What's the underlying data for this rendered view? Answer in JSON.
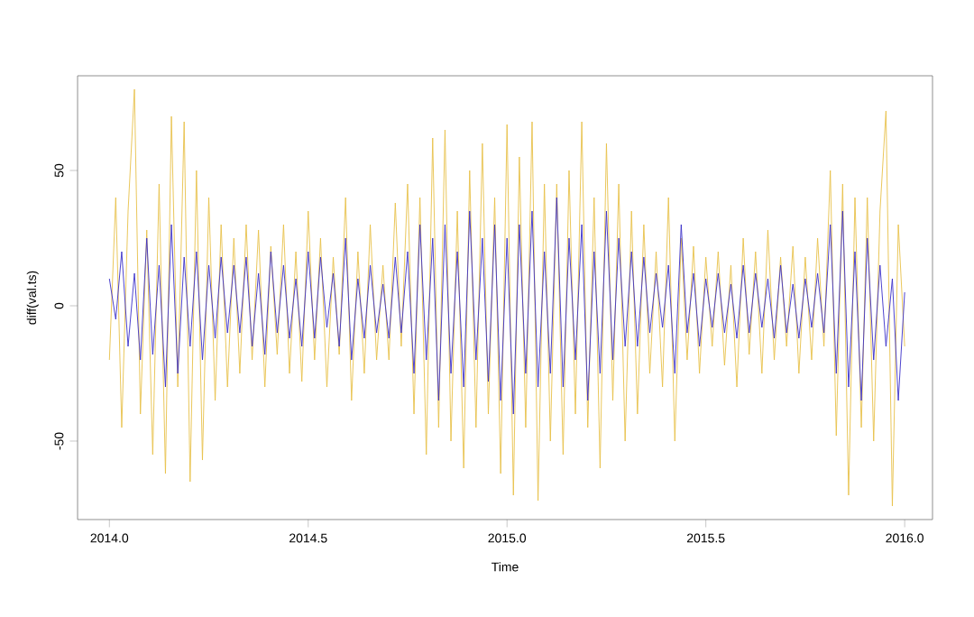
{
  "chart_data": {
    "type": "line",
    "xlabel": "Time",
    "ylabel": "diff(val.ts)",
    "xlim": [
      2013.92,
      2016.07
    ],
    "ylim": [
      -79,
      85
    ],
    "xticks": [
      {
        "value": 2014,
        "label": "2014.0"
      },
      {
        "value": 2014.5,
        "label": "2014.5"
      },
      {
        "value": 2015,
        "label": "2015.0"
      },
      {
        "value": 2015.5,
        "label": "2015.5"
      },
      {
        "value": 2016,
        "label": "2016.0"
      }
    ],
    "yticks": [
      -50,
      0,
      50
    ],
    "marker": "none",
    "line_style": "solid",
    "x": [
      2014.0,
      2014.016,
      2014.031,
      2014.047,
      2014.063,
      2014.078,
      2014.094,
      2014.109,
      2014.125,
      2014.141,
      2014.156,
      2014.172,
      2014.188,
      2014.203,
      2014.219,
      2014.234,
      2014.25,
      2014.266,
      2014.281,
      2014.297,
      2014.313,
      2014.328,
      2014.344,
      2014.359,
      2014.375,
      2014.391,
      2014.406,
      2014.422,
      2014.438,
      2014.453,
      2014.469,
      2014.484,
      2014.5,
      2014.516,
      2014.531,
      2014.547,
      2014.563,
      2014.578,
      2014.594,
      2014.609,
      2014.625,
      2014.641,
      2014.656,
      2014.672,
      2014.688,
      2014.703,
      2014.719,
      2014.734,
      2014.75,
      2014.766,
      2014.781,
      2014.797,
      2014.813,
      2014.828,
      2014.844,
      2014.859,
      2014.875,
      2014.891,
      2014.906,
      2014.922,
      2014.938,
      2014.953,
      2014.969,
      2014.984,
      2015.0,
      2015.016,
      2015.031,
      2015.047,
      2015.063,
      2015.078,
      2015.094,
      2015.109,
      2015.125,
      2015.141,
      2015.156,
      2015.172,
      2015.188,
      2015.203,
      2015.219,
      2015.234,
      2015.25,
      2015.266,
      2015.281,
      2015.297,
      2015.313,
      2015.328,
      2015.344,
      2015.359,
      2015.375,
      2015.391,
      2015.406,
      2015.422,
      2015.438,
      2015.453,
      2015.469,
      2015.484,
      2015.5,
      2015.516,
      2015.531,
      2015.547,
      2015.563,
      2015.578,
      2015.594,
      2015.609,
      2015.625,
      2015.641,
      2015.656,
      2015.672,
      2015.688,
      2015.703,
      2015.719,
      2015.734,
      2015.75,
      2015.766,
      2015.781,
      2015.797,
      2015.813,
      2015.828,
      2015.844,
      2015.859,
      2015.875,
      2015.891,
      2015.906,
      2015.922,
      2015.938,
      2015.953,
      2015.969,
      2015.984,
      2016.0
    ],
    "series": [
      {
        "color": "#e8c14a",
        "values": [
          -20,
          40,
          -45,
          35,
          80,
          -40,
          28,
          -55,
          45,
          -62,
          70,
          -30,
          68,
          -65,
          50,
          -57,
          40,
          -35,
          30,
          -30,
          25,
          -25,
          30,
          -20,
          28,
          -30,
          22,
          -18,
          30,
          -25,
          20,
          -28,
          35,
          -20,
          25,
          -30,
          18,
          -18,
          40,
          -35,
          20,
          -25,
          30,
          -20,
          15,
          -20,
          38,
          -15,
          45,
          -40,
          40,
          -55,
          62,
          -45,
          65,
          -50,
          35,
          -60,
          50,
          -45,
          60,
          -40,
          40,
          -62,
          67,
          -70,
          55,
          -45,
          68,
          -72,
          45,
          -50,
          45,
          -55,
          50,
          -40,
          68,
          -45,
          40,
          -60,
          60,
          -35,
          45,
          -50,
          35,
          -40,
          30,
          -25,
          20,
          -30,
          40,
          -50,
          25,
          -20,
          22,
          -25,
          18,
          -15,
          20,
          -22,
          15,
          -30,
          25,
          -18,
          20,
          -25,
          28,
          -20,
          18,
          -15,
          22,
          -25,
          18,
          -20,
          25,
          -15,
          50,
          -48,
          45,
          -70,
          40,
          -45,
          40,
          -50,
          35,
          72,
          -74,
          30,
          -15
        ]
      },
      {
        "color": "#3a2fc8",
        "values": [
          10,
          -5,
          20,
          -15,
          12,
          -20,
          25,
          -18,
          15,
          -30,
          30,
          -25,
          18,
          -15,
          20,
          -20,
          15,
          -12,
          18,
          -10,
          15,
          -10,
          18,
          -15,
          12,
          -18,
          20,
          -10,
          15,
          -12,
          10,
          -15,
          20,
          -12,
          18,
          -8,
          12,
          -15,
          25,
          -20,
          10,
          -12,
          15,
          -10,
          8,
          -12,
          18,
          -10,
          20,
          -25,
          30,
          -20,
          25,
          -35,
          30,
          -25,
          20,
          -30,
          35,
          -20,
          25,
          -28,
          30,
          -35,
          25,
          -40,
          30,
          -25,
          35,
          -30,
          20,
          -25,
          40,
          -30,
          25,
          -20,
          30,
          -35,
          20,
          -25,
          35,
          -20,
          25,
          -15,
          20,
          -15,
          18,
          -10,
          12,
          -8,
          15,
          -25,
          30,
          -10,
          12,
          -15,
          10,
          -8,
          12,
          -10,
          8,
          -12,
          15,
          -10,
          12,
          -8,
          10,
          -12,
          15,
          -10,
          8,
          -12,
          10,
          -8,
          12,
          -10,
          30,
          -25,
          35,
          -30,
          20,
          -35,
          25,
          -20,
          15,
          -15,
          10,
          -35,
          5
        ]
      }
    ]
  }
}
